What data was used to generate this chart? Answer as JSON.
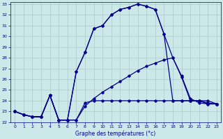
{
  "xlabel": "Graphe des températures (°c)",
  "background_color": "#cce8e8",
  "grid_color": "#aacccc",
  "line_color": "#00008b",
  "xlim": [
    -0.5,
    23.5
  ],
  "ylim": [
    22,
    33.2
  ],
  "yticks": [
    22,
    23,
    24,
    25,
    26,
    27,
    28,
    29,
    30,
    31,
    32,
    33
  ],
  "xticks": [
    0,
    1,
    2,
    3,
    4,
    5,
    6,
    7,
    8,
    9,
    10,
    11,
    12,
    13,
    14,
    15,
    16,
    17,
    18,
    19,
    20,
    21,
    22,
    23
  ],
  "curve1_x": [
    0,
    1,
    2,
    3,
    4,
    5,
    6,
    7,
    8,
    9,
    10,
    11,
    12,
    13,
    14,
    15,
    16,
    17,
    18,
    19,
    20,
    21,
    22,
    23
  ],
  "curve1_y": [
    23.0,
    22.7,
    22.5,
    22.5,
    24.5,
    22.2,
    22.2,
    26.7,
    28.5,
    30.7,
    31.0,
    32.0,
    32.5,
    32.7,
    33.0,
    32.8,
    32.5,
    30.2,
    24.0,
    24.0,
    24.0,
    24.0,
    24.0,
    23.7
  ],
  "curve2_x": [
    0,
    1,
    2,
    3,
    4,
    5,
    6,
    7,
    8,
    9,
    10,
    11,
    12,
    13,
    14,
    15,
    16,
    17,
    18,
    19,
    20,
    21,
    22,
    23
  ],
  "curve2_y": [
    23.0,
    22.7,
    22.5,
    22.5,
    24.5,
    22.2,
    22.2,
    26.7,
    28.5,
    30.7,
    31.0,
    32.0,
    32.5,
    32.7,
    33.0,
    32.8,
    32.5,
    30.2,
    28.0,
    26.2,
    24.0,
    24.0,
    23.7,
    23.7
  ],
  "curve3_x": [
    0,
    1,
    2,
    3,
    4,
    5,
    6,
    7,
    8,
    9,
    10,
    11,
    12,
    13,
    14,
    15,
    16,
    17,
    18,
    19,
    20,
    21,
    22,
    23
  ],
  "curve3_y": [
    23.0,
    22.7,
    22.5,
    22.5,
    24.5,
    22.2,
    22.2,
    22.2,
    23.5,
    24.2,
    24.8,
    25.3,
    25.8,
    26.3,
    26.8,
    27.2,
    27.5,
    27.8,
    28.0,
    26.3,
    24.2,
    23.8,
    23.7,
    23.7
  ],
  "curve4_x": [
    0,
    1,
    2,
    3,
    4,
    5,
    6,
    7,
    8,
    9,
    10,
    11,
    12,
    13,
    14,
    15,
    16,
    17,
    18,
    19,
    20,
    21,
    22,
    23
  ],
  "curve4_y": [
    23.0,
    22.7,
    22.5,
    22.5,
    24.5,
    22.2,
    22.2,
    22.2,
    23.8,
    24.0,
    24.0,
    24.0,
    24.0,
    24.0,
    24.0,
    24.0,
    24.0,
    24.0,
    24.0,
    24.0,
    24.0,
    24.0,
    23.8,
    23.7
  ]
}
